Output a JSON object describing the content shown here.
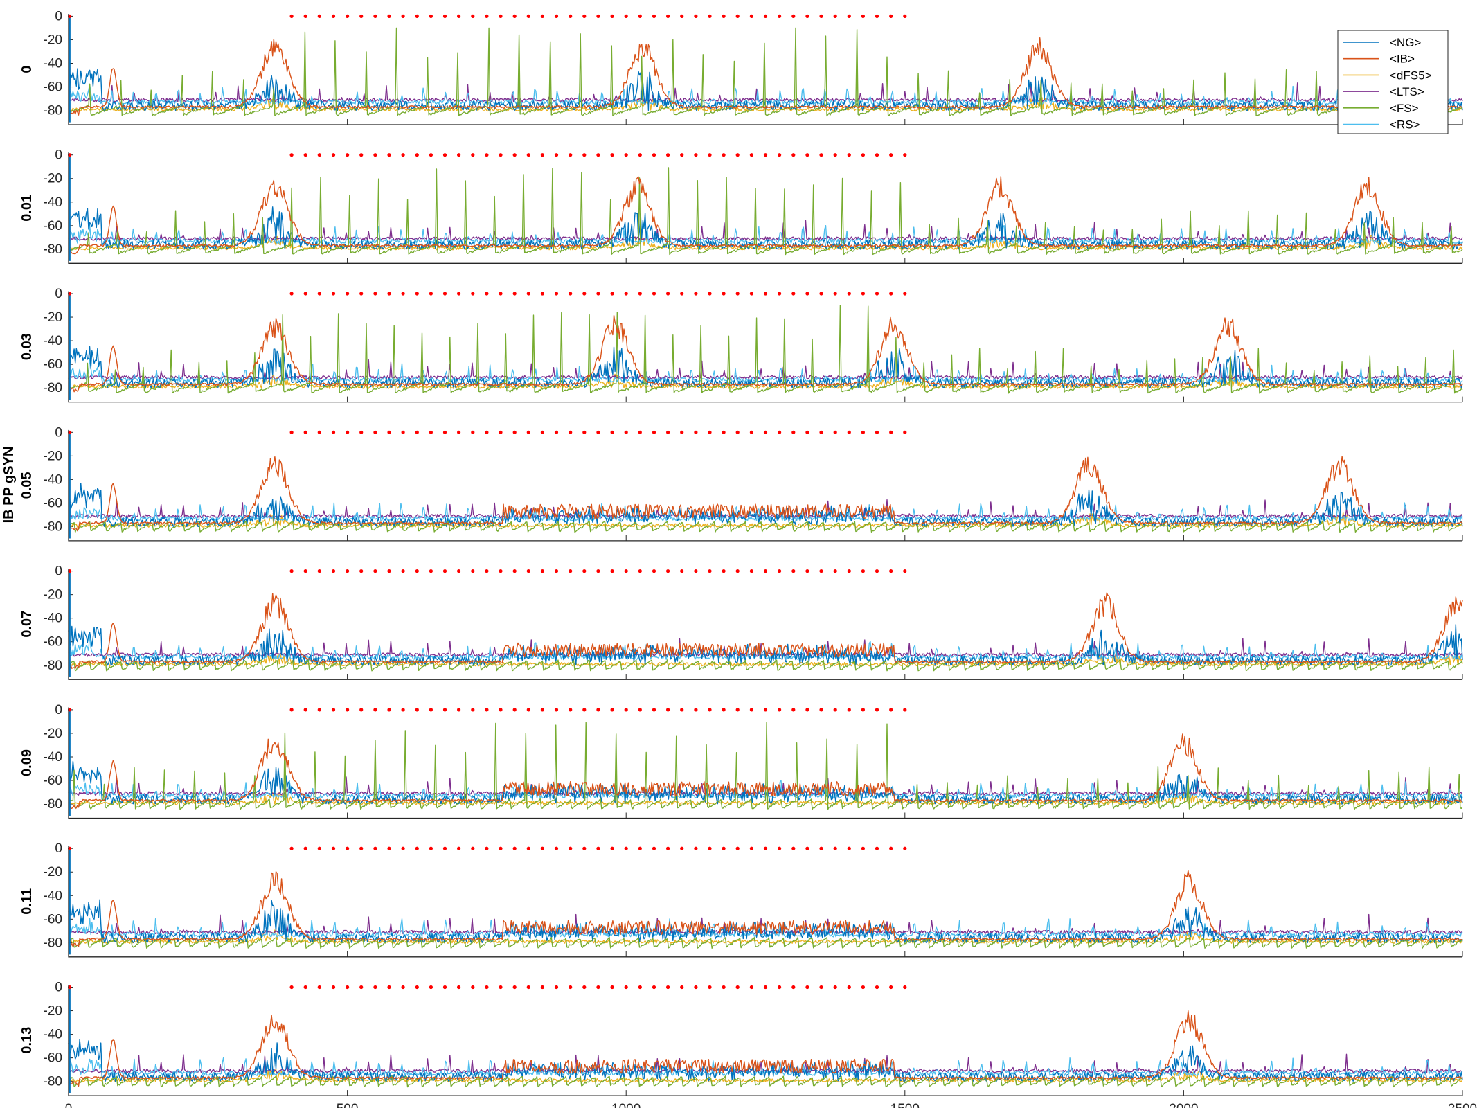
{
  "chart_data": {
    "type": "line",
    "ylabel": "IB PP gSYN",
    "x": {
      "ticks": [
        0,
        500,
        1000,
        1500,
        2000,
        2500
      ],
      "lim": [
        0,
        2500
      ]
    },
    "y": {
      "ticks": [
        0,
        -20,
        -40,
        -60,
        -80
      ],
      "lim": [
        -92,
        2
      ]
    },
    "legend": {
      "location": "top-right",
      "entries": [
        "<NG>",
        "<IB>",
        "<dFS5>",
        "<LTS>",
        "<FS>",
        "<RS>"
      ]
    },
    "colors": {
      "<NG>": "#0072BD",
      "<IB>": "#D95319",
      "<dFS5>": "#EDB120",
      "<LTS>": "#7E2F8E",
      "<FS>": "#77AC30",
      "<RS>": "#4DBEEE",
      "marker": "#FF0000",
      "axis": "#262626"
    },
    "stimulus_markers": {
      "y": 0,
      "x_start": 400,
      "x_end": 1500,
      "count": 45,
      "color": "#FF0000"
    },
    "rows": [
      {
        "label": "0",
        "ib_bursts": [
          370,
          1030,
          1740
        ],
        "ib_tonic": [],
        "fs_spike_period": 55
      },
      {
        "label": "0.01",
        "ib_bursts": [
          370,
          1020,
          1670,
          2330
        ],
        "ib_tonic": [],
        "fs_spike_period": 52
      },
      {
        "label": "0.03",
        "ib_bursts": [
          370,
          980,
          1480,
          2080
        ],
        "ib_tonic": [],
        "fs_spike_period": 50
      },
      {
        "label": "0.05",
        "ib_bursts": [
          370,
          1830,
          2280
        ],
        "ib_tonic": [
          [
            780,
            1480
          ]
        ],
        "fs_spike_period": 28
      },
      {
        "label": "0.07",
        "ib_bursts": [
          370,
          1860,
          2490
        ],
        "ib_tonic": [
          [
            780,
            1480
          ]
        ],
        "fs_spike_period": 28
      },
      {
        "label": "0.09",
        "ib_bursts": [
          370,
          2000
        ],
        "ib_tonic": [
          [
            780,
            1480
          ]
        ],
        "fs_spike_period": 27
      },
      {
        "label": "0.11",
        "ib_bursts": [
          370,
          2010
        ],
        "ib_tonic": [
          [
            780,
            1480
          ]
        ],
        "fs_spike_period": 26
      },
      {
        "label": "0.13",
        "ib_bursts": [
          370,
          2010
        ],
        "ib_tonic": [
          [
            780,
            1480
          ]
        ],
        "fs_spike_period": 26
      }
    ]
  }
}
